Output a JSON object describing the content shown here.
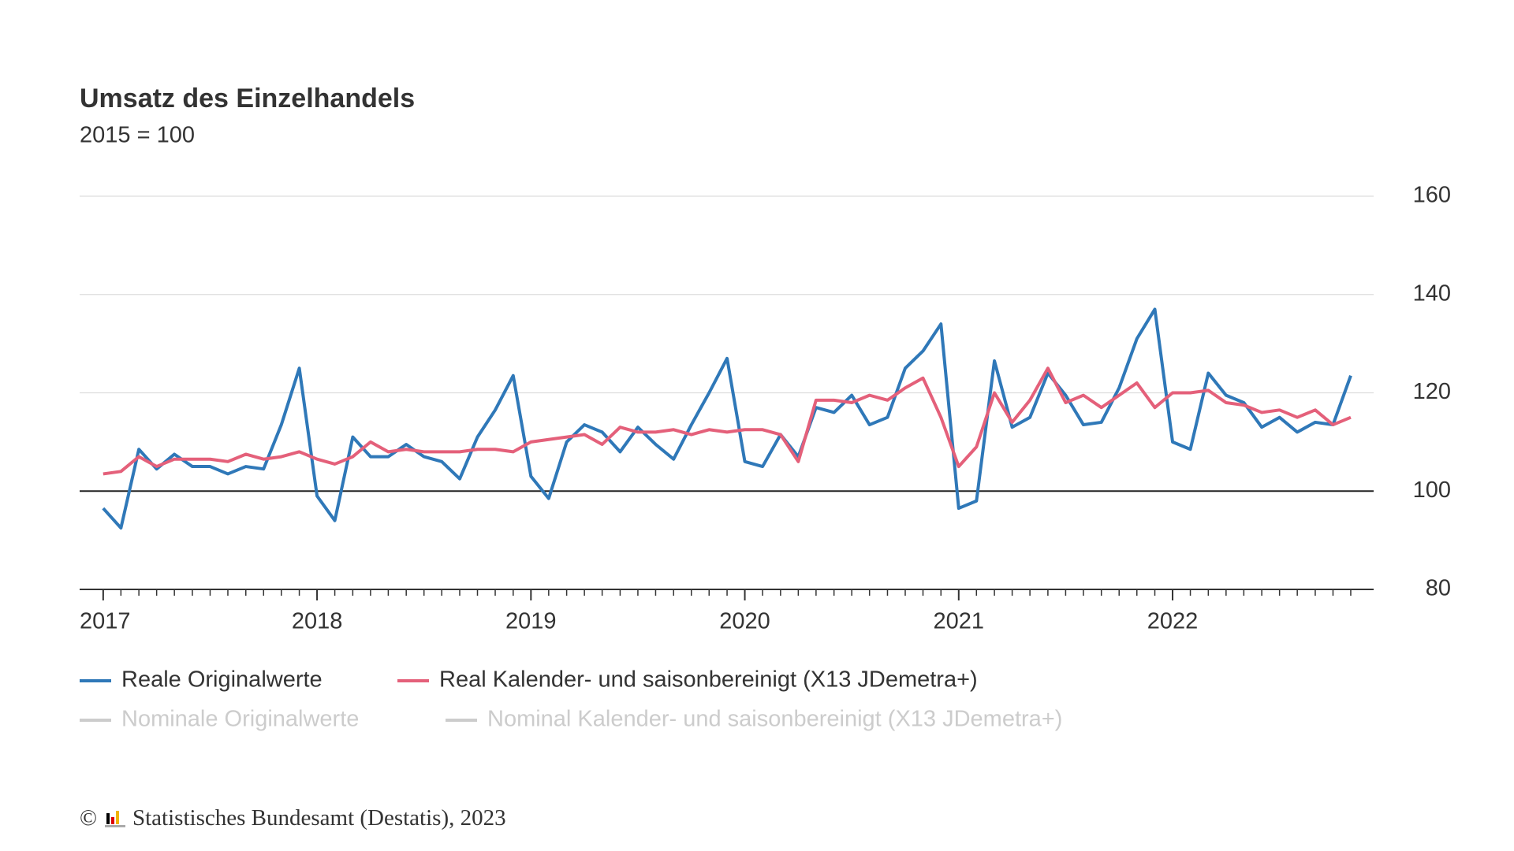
{
  "chart_data": {
    "type": "line",
    "title": "Umsatz des Einzelhandels",
    "subtitle": "2015 = 100",
    "source": "© Statistisches Bundesamt (Destatis), 2023",
    "x": [
      2017.0,
      2017.083,
      2017.167,
      2017.25,
      2017.333,
      2017.417,
      2017.5,
      2017.583,
      2017.667,
      2017.75,
      2017.833,
      2017.917,
      2018.0,
      2018.083,
      2018.167,
      2018.25,
      2018.333,
      2018.417,
      2018.5,
      2018.583,
      2018.667,
      2018.75,
      2018.833,
      2018.917,
      2019.0,
      2019.083,
      2019.167,
      2019.25,
      2019.333,
      2019.417,
      2019.5,
      2019.583,
      2019.667,
      2019.75,
      2019.833,
      2019.917,
      2020.0,
      2020.083,
      2020.167,
      2020.25,
      2020.333,
      2020.417,
      2020.5,
      2020.583,
      2020.667,
      2020.75,
      2020.833,
      2020.917,
      2021.0,
      2021.083,
      2021.167,
      2021.25,
      2021.333,
      2021.417,
      2021.5,
      2021.583,
      2021.667,
      2021.75,
      2021.833,
      2021.917,
      2022.0,
      2022.083,
      2022.167,
      2022.25,
      2022.333,
      2022.417,
      2022.5,
      2022.583,
      2022.667,
      2022.75,
      2022.833
    ],
    "series": [
      {
        "name": "Reale Originalwerte",
        "color": "#2f78b8",
        "visible": true,
        "values": [
          96.5,
          92.5,
          108.5,
          104.5,
          107.5,
          105,
          105,
          103.5,
          105,
          104.5,
          113.5,
          125,
          99,
          94,
          111,
          107,
          107,
          109.5,
          107,
          106,
          102.5,
          111,
          116.5,
          123.5,
          103,
          98.5,
          110,
          113.5,
          112,
          108,
          113,
          109.5,
          106.5,
          113.5,
          120,
          127,
          106,
          105,
          111.5,
          107,
          117,
          116,
          119.5,
          113.5,
          115,
          125,
          128.5,
          134,
          96.5,
          98,
          126.5,
          113,
          115,
          124,
          119.5,
          113.5,
          114,
          121,
          131,
          137,
          110,
          108.5,
          124,
          119.5,
          118,
          113,
          115,
          112,
          114,
          113.5,
          123.5
        ]
      },
      {
        "name": "Real Kalender- und saisonbereinigt (X13 JDemetra+)",
        "color": "#e4607a",
        "visible": true,
        "values": [
          103.5,
          104,
          107,
          105,
          106.5,
          106.5,
          106.5,
          106,
          107.5,
          106.5,
          107,
          108,
          106.5,
          105.5,
          107,
          110,
          108,
          108.5,
          108,
          108,
          108,
          108.5,
          108.5,
          108,
          110,
          110.5,
          111,
          111.5,
          109.5,
          113,
          112,
          112,
          112.5,
          111.5,
          112.5,
          112,
          112.5,
          112.5,
          111.5,
          106,
          118.5,
          118.5,
          118,
          119.5,
          118.5,
          121,
          123,
          115,
          105,
          109,
          120,
          114,
          118.5,
          125,
          118,
          119.5,
          117,
          119.5,
          122,
          117,
          120,
          120,
          120.5,
          118,
          117.5,
          116,
          116.5,
          115,
          116.5,
          113.5,
          115
        ]
      },
      {
        "name": "Nominale Originalwerte",
        "color": "#cccccc",
        "visible": false
      },
      {
        "name": "Nominal Kalender- und saisonbereinigt (X13 JDemetra+)",
        "color": "#cccccc",
        "visible": false
      }
    ],
    "xlim": [
      2016.89,
      2022.94
    ],
    "xticks": [
      2017,
      2018,
      2019,
      2020,
      2021,
      2022
    ],
    "ylim": [
      80,
      160
    ],
    "yticks": [
      80,
      100,
      120,
      140,
      160
    ],
    "reference_line": 100,
    "grid": true
  }
}
